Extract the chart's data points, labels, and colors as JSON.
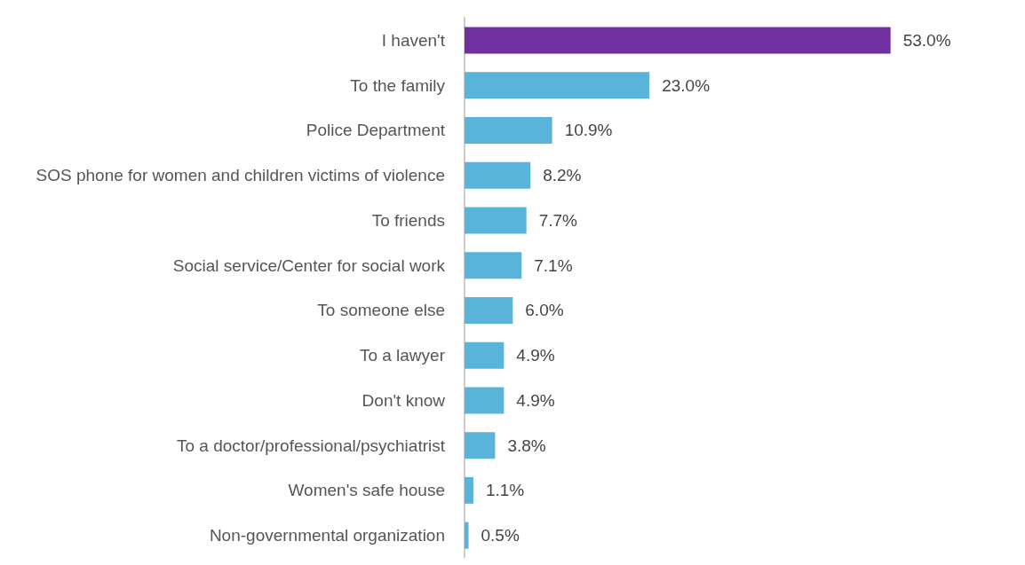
{
  "chart_data": {
    "type": "bar",
    "orientation": "horizontal",
    "categories": [
      "I haven't",
      "To the family",
      "Police Department",
      "SOS phone for women and children victims of violence",
      "To friends",
      "Social service/Center for social work",
      "To someone else",
      "To a lawyer",
      "Don't know",
      "To a doctor/professional/psychiatrist",
      "Women's safe house",
      "Non-governmental organization"
    ],
    "values": [
      53.0,
      23.0,
      10.9,
      8.2,
      7.7,
      7.1,
      6.0,
      4.9,
      4.9,
      3.8,
      1.1,
      0.5
    ],
    "value_labels": [
      "53.0%",
      "23.0%",
      "10.9%",
      "8.2%",
      "7.7%",
      "7.1%",
      "6.0%",
      "4.9%",
      "4.9%",
      "3.8%",
      "1.1%",
      "0.5%"
    ],
    "colors": [
      "#7030a0",
      "#5ab4d9",
      "#5ab4d9",
      "#5ab4d9",
      "#5ab4d9",
      "#5ab4d9",
      "#5ab4d9",
      "#5ab4d9",
      "#5ab4d9",
      "#5ab4d9",
      "#5ab4d9",
      "#5ab4d9"
    ],
    "grid": false
  }
}
